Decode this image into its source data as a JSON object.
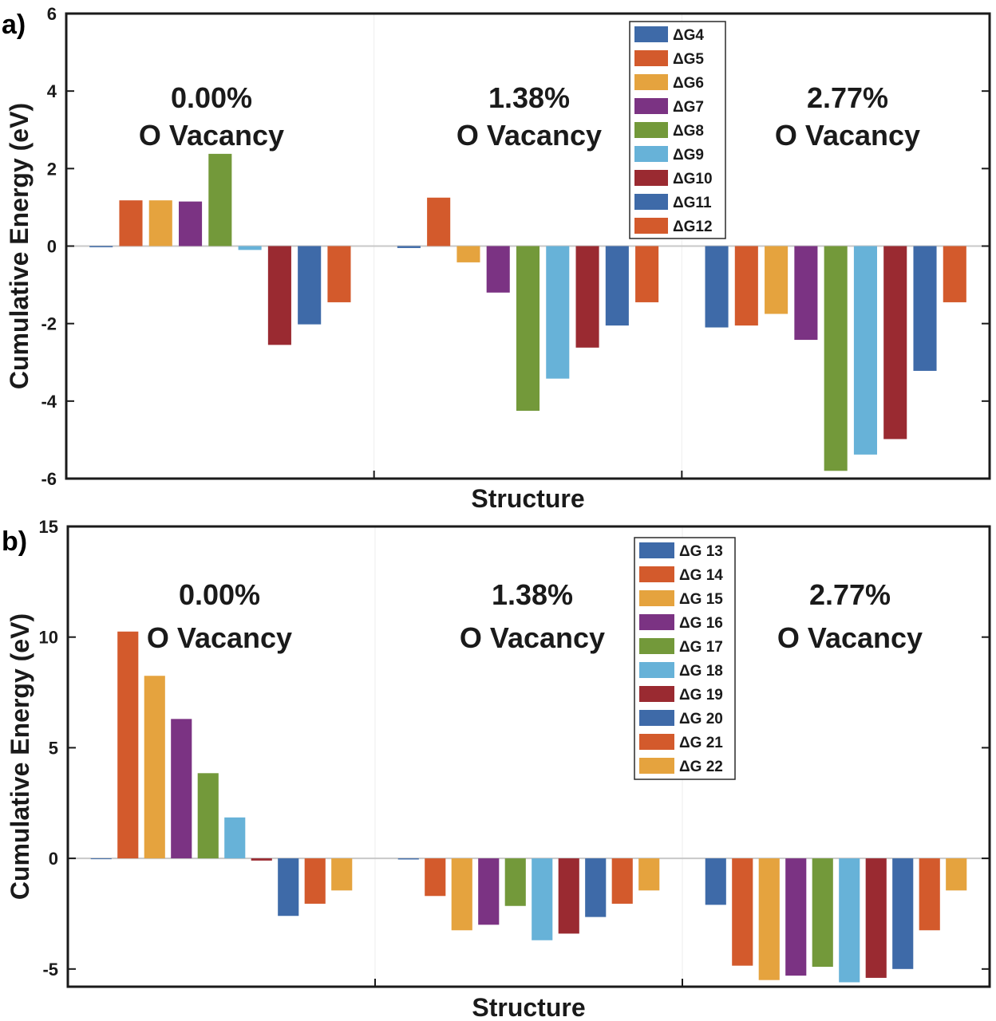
{
  "chart_data": [
    {
      "panel_label": "a)",
      "type": "bar",
      "xlabel": "Structure",
      "ylabel": "Cumulative Energy (eV)",
      "ylim": [
        -6,
        6
      ],
      "yticks": [
        6,
        4,
        2,
        0,
        -2,
        -4,
        -6
      ],
      "groups": [
        {
          "line1": "0.00%",
          "line2": "O Vacancy"
        },
        {
          "line1": "1.38%",
          "line2": "O Vacancy"
        },
        {
          "line1": "2.77%",
          "line2": "O Vacancy"
        }
      ],
      "legend_position": "top-center",
      "series": [
        {
          "name": "ΔG4",
          "color": "#3e6aa8",
          "values": [
            -0.03,
            -0.05,
            -2.1
          ]
        },
        {
          "name": "ΔG5",
          "color": "#d35a2c",
          "values": [
            1.18,
            1.25,
            -2.05
          ]
        },
        {
          "name": "ΔG6",
          "color": "#e5a33e",
          "values": [
            1.18,
            -0.42,
            -1.75
          ]
        },
        {
          "name": "ΔG7",
          "color": "#7b3383",
          "values": [
            1.15,
            -1.2,
            -2.42
          ]
        },
        {
          "name": "ΔG8",
          "color": "#73993a",
          "values": [
            2.38,
            -4.25,
            -5.8
          ]
        },
        {
          "name": "ΔG9",
          "color": "#67b2d8",
          "values": [
            -0.1,
            -3.42,
            -5.38
          ]
        },
        {
          "name": "ΔG10",
          "color": "#9a2a31",
          "values": [
            -2.55,
            -2.62,
            -4.98
          ]
        },
        {
          "name": "ΔG11",
          "color": "#3e6aa8",
          "values": [
            -2.02,
            -2.05,
            -3.22
          ]
        },
        {
          "name": "ΔG12",
          "color": "#d35a2c",
          "values": [
            -1.45,
            -1.45,
            -1.45
          ]
        }
      ]
    },
    {
      "panel_label": "b)",
      "type": "bar",
      "xlabel": "Structure",
      "ylabel": "Cumulative Energy (eV)",
      "ylim": [
        -5.8,
        15
      ],
      "yticks": [
        15,
        10,
        5,
        0,
        -5
      ],
      "groups": [
        {
          "line1": "0.00%",
          "line2": "O Vacancy"
        },
        {
          "line1": "1.38%",
          "line2": "O Vacancy"
        },
        {
          "line1": "2.77%",
          "line2": "O Vacancy"
        }
      ],
      "legend_position": "top-center",
      "series": [
        {
          "name": "ΔG 13",
          "color": "#3e6aa8",
          "values": [
            -0.03,
            -0.05,
            -2.1
          ]
        },
        {
          "name": "ΔG 14",
          "color": "#d35a2c",
          "values": [
            10.25,
            -1.7,
            -4.85
          ]
        },
        {
          "name": "ΔG 15",
          "color": "#e5a33e",
          "values": [
            8.25,
            -3.25,
            -5.5
          ]
        },
        {
          "name": "ΔG 16",
          "color": "#7b3383",
          "values": [
            6.3,
            -3.0,
            -5.3
          ]
        },
        {
          "name": "ΔG 17",
          "color": "#73993a",
          "values": [
            3.85,
            -2.15,
            -4.9
          ]
        },
        {
          "name": "ΔG 18",
          "color": "#67b2d8",
          "values": [
            1.85,
            -3.7,
            -5.6
          ]
        },
        {
          "name": "ΔG 19",
          "color": "#9a2a31",
          "values": [
            -0.1,
            -3.4,
            -5.4
          ]
        },
        {
          "name": "ΔG 20",
          "color": "#3e6aa8",
          "values": [
            -2.6,
            -2.65,
            -5.0
          ]
        },
        {
          "name": "ΔG 21",
          "color": "#d35a2c",
          "values": [
            -2.05,
            -2.05,
            -3.25
          ]
        },
        {
          "name": "ΔG 22",
          "color": "#e5a33e",
          "values": [
            -1.45,
            -1.45,
            -1.45
          ]
        }
      ]
    }
  ]
}
